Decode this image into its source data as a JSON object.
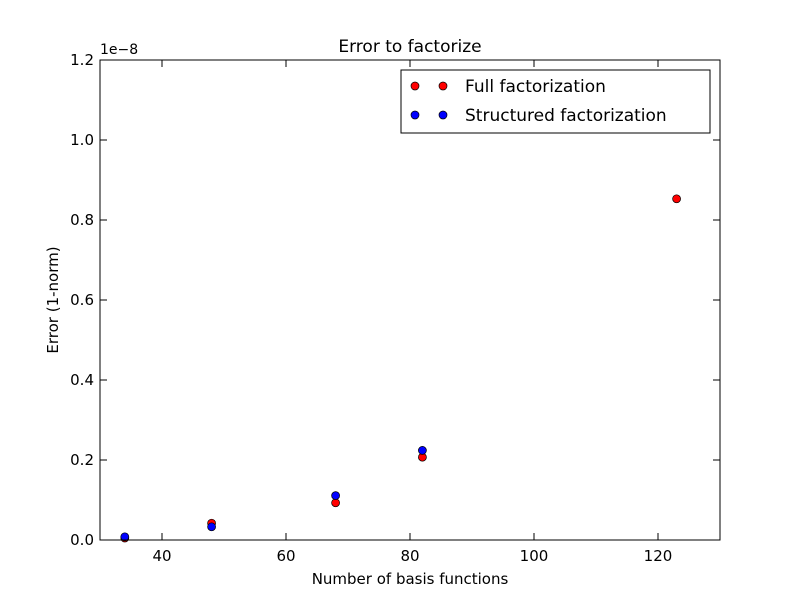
{
  "chart_data": {
    "type": "scatter",
    "title": "Error to factorize",
    "xlabel": "Number of basis functions",
    "ylabel": "Error (1-norm)",
    "y_offset_text": "1e−8",
    "xlim": [
      30,
      130
    ],
    "ylim": [
      0.0,
      1.2
    ],
    "x_ticks": [
      40,
      60,
      80,
      100,
      120
    ],
    "x_tick_labels": [
      "40",
      "60",
      "80",
      "100",
      "120"
    ],
    "y_ticks": [
      0.0,
      0.2,
      0.4,
      0.6,
      0.8,
      1.0,
      1.2
    ],
    "y_tick_labels": [
      "0.0",
      "0.2",
      "0.4",
      "0.6",
      "0.8",
      "1.0",
      "1.2"
    ],
    "grid": false,
    "legend_position": "top-right",
    "series": [
      {
        "name": "Full factorization",
        "color": "#ff0000",
        "x": [
          34,
          48,
          68,
          82,
          123
        ],
        "y": [
          0.005,
          0.042,
          0.093,
          0.207,
          0.853
        ]
      },
      {
        "name": "Structured factorization",
        "color": "#0000ff",
        "x": [
          34,
          48,
          68,
          82
        ],
        "y": [
          0.008,
          0.033,
          0.111,
          0.224
        ]
      }
    ]
  }
}
